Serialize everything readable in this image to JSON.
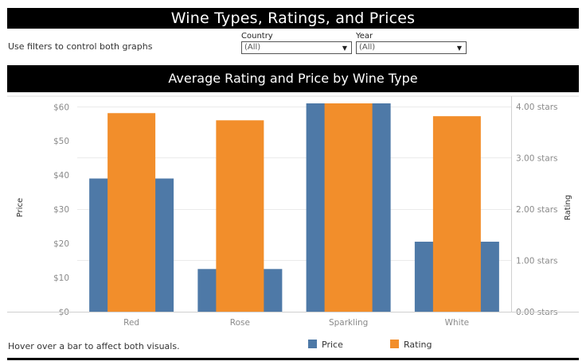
{
  "header": {
    "title": "Wine Types, Ratings, and Prices"
  },
  "filters": {
    "hint": "Use filters to control both graphs",
    "country": {
      "label": "Country",
      "value": "(All)",
      "caret": "▼"
    },
    "year": {
      "label": "Year",
      "value": "(All)",
      "caret": "▼"
    }
  },
  "colors": {
    "price": "#4e79a7",
    "rating": "#f28e2b",
    "grid": "#ebebeb",
    "axis_text": "#8a8a8a"
  },
  "chart_data": {
    "type": "bar",
    "title": "Average Rating and Price by Wine Type",
    "categories": [
      "Red",
      "Rose",
      "Sparkling",
      "White"
    ],
    "series": [
      {
        "name": "Price",
        "axis": "left",
        "values": [
          39,
          12.5,
          61,
          20.5
        ]
      },
      {
        "name": "Rating",
        "axis": "right",
        "values": [
          3.87,
          3.73,
          4.06,
          3.81
        ]
      }
    ],
    "ylabel": "Price",
    "y2label": "Rating",
    "ylim": [
      0,
      61
    ],
    "y2lim": [
      0,
      4.06
    ],
    "yticks": [
      0,
      10,
      20,
      30,
      40,
      50,
      60
    ],
    "ytick_labels": [
      "$0",
      "$10",
      "$20",
      "$30",
      "$40",
      "$50",
      "$60"
    ],
    "y2ticks": [
      0,
      1,
      2,
      3,
      4
    ],
    "y2tick_labels": [
      "0.00 stars",
      "1.00 stars",
      "2.00 stars",
      "3.00 stars",
      "4.00 stars"
    ],
    "grid": true,
    "legend": "bottom"
  },
  "footer": {
    "hint": "Hover over a bar to affect both visuals."
  }
}
